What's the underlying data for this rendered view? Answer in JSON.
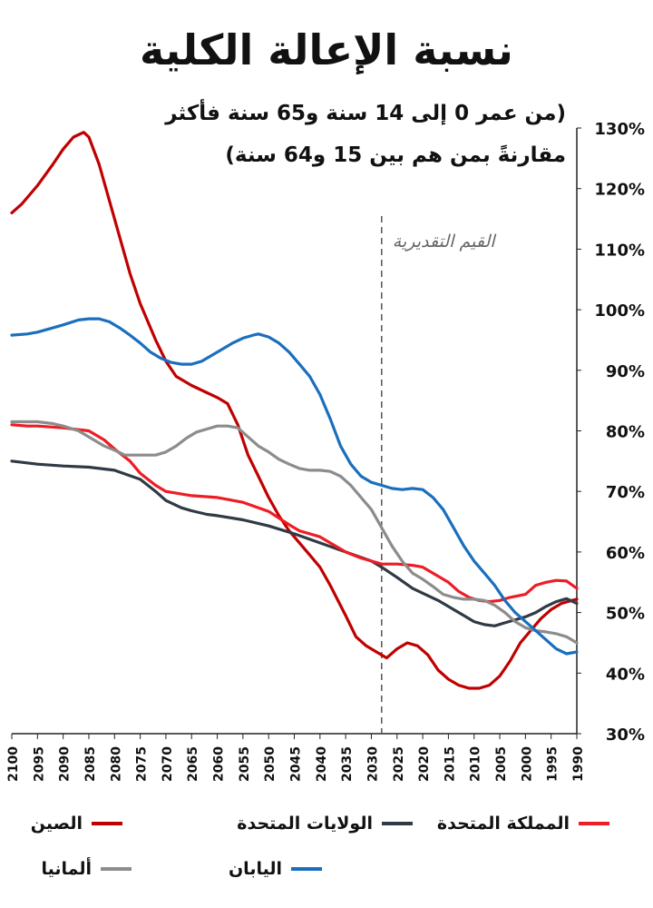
{
  "header": {
    "title": "نسبة الإعالة الكلية",
    "subtitle_line1": "(من عمر 0 إلى 14 سنة و65 سنة فأكثر",
    "subtitle_line2": "مقارنةً بمن هم بين 15 و64 سنة)"
  },
  "chart_data": {
    "type": "line",
    "title": "نسبة الإعالة الكلية",
    "subtitle": "(من عمر 0 إلى 14 سنة و65 سنة فأكثر مقارنةً بمن هم بين 15 و64 سنة)",
    "x_reversed": true,
    "xlim": [
      1990,
      2100
    ],
    "ylim": [
      30,
      130
    ],
    "x_ticks": [
      2100,
      2095,
      2090,
      2085,
      2080,
      2075,
      2070,
      2065,
      2060,
      2055,
      2050,
      2045,
      2040,
      2035,
      2030,
      2025,
      2020,
      2015,
      2010,
      2005,
      2000,
      1995,
      1990
    ],
    "y_ticks": [
      30,
      40,
      50,
      60,
      70,
      80,
      90,
      100,
      110,
      120,
      130
    ],
    "y_tick_labels": [
      "30%",
      "40%",
      "50%",
      "60%",
      "70%",
      "80%",
      "90%",
      "100%",
      "110%",
      "120%",
      "130%"
    ],
    "y_axis_side": "right",
    "grid": false,
    "annotation": {
      "text": "القيم التقديرية",
      "x": 2028
    },
    "legend_position": "bottom",
    "series": [
      {
        "name": "الصين",
        "color": "#c00000",
        "points": [
          [
            2100,
            116
          ],
          [
            2098,
            117.5
          ],
          [
            2095,
            120.5
          ],
          [
            2092,
            124
          ],
          [
            2090,
            126.5
          ],
          [
            2088,
            128.5
          ],
          [
            2086,
            129.3
          ],
          [
            2085,
            128.5
          ],
          [
            2083,
            124
          ],
          [
            2080,
            115
          ],
          [
            2077,
            106
          ],
          [
            2075,
            101
          ],
          [
            2072,
            95
          ],
          [
            2070,
            91.5
          ],
          [
            2068,
            89
          ],
          [
            2065,
            87.5
          ],
          [
            2062,
            86.3
          ],
          [
            2060,
            85.5
          ],
          [
            2058,
            84.5
          ],
          [
            2056,
            81
          ],
          [
            2054,
            76
          ],
          [
            2052,
            72.5
          ],
          [
            2050,
            69
          ],
          [
            2048,
            66
          ],
          [
            2046,
            63.5
          ],
          [
            2044,
            61.5
          ],
          [
            2042,
            59.5
          ],
          [
            2040,
            57.5
          ],
          [
            2038,
            54.5
          ],
          [
            2035,
            49.5
          ],
          [
            2033,
            46
          ],
          [
            2031,
            44.5
          ],
          [
            2029,
            43.5
          ],
          [
            2027,
            42.5
          ],
          [
            2025,
            44
          ],
          [
            2023,
            45
          ],
          [
            2021,
            44.5
          ],
          [
            2019,
            43
          ],
          [
            2017,
            40.5
          ],
          [
            2015,
            39
          ],
          [
            2013,
            38
          ],
          [
            2011,
            37.5
          ],
          [
            2009,
            37.5
          ],
          [
            2007,
            38
          ],
          [
            2005,
            39.5
          ],
          [
            2003,
            42
          ],
          [
            2001,
            45
          ],
          [
            1999,
            47
          ],
          [
            1997,
            49
          ],
          [
            1995,
            50.5
          ],
          [
            1993,
            51.5
          ],
          [
            1991,
            52
          ],
          [
            1990,
            52.2
          ]
        ]
      },
      {
        "name": "الولايات المتحدة",
        "color": "#2f3a45",
        "points": [
          [
            2100,
            75
          ],
          [
            2095,
            74.5
          ],
          [
            2090,
            74.2
          ],
          [
            2085,
            74
          ],
          [
            2080,
            73.5
          ],
          [
            2075,
            72
          ],
          [
            2072,
            70
          ],
          [
            2070,
            68.5
          ],
          [
            2067,
            67.3
          ],
          [
            2065,
            66.8
          ],
          [
            2062,
            66.2
          ],
          [
            2060,
            66
          ],
          [
            2055,
            65.3
          ],
          [
            2050,
            64.3
          ],
          [
            2045,
            63
          ],
          [
            2040,
            61.5
          ],
          [
            2035,
            60
          ],
          [
            2030,
            58.5
          ],
          [
            2028,
            57.5
          ],
          [
            2025,
            55.8
          ],
          [
            2022,
            54
          ],
          [
            2020,
            53.2
          ],
          [
            2017,
            52
          ],
          [
            2015,
            51
          ],
          [
            2012,
            49.5
          ],
          [
            2010,
            48.5
          ],
          [
            2008,
            48
          ],
          [
            2006,
            47.8
          ],
          [
            2004,
            48.3
          ],
          [
            2002,
            48.8
          ],
          [
            2000,
            49.3
          ],
          [
            1998,
            50
          ],
          [
            1996,
            51
          ],
          [
            1994,
            51.8
          ],
          [
            1992,
            52.3
          ],
          [
            1990,
            51.5
          ]
        ]
      },
      {
        "name": "المملكة المتحدة",
        "color": "#ee1c25",
        "points": [
          [
            2100,
            81
          ],
          [
            2097,
            80.8
          ],
          [
            2095,
            80.8
          ],
          [
            2090,
            80.5
          ],
          [
            2085,
            80
          ],
          [
            2082,
            78.5
          ],
          [
            2080,
            77
          ],
          [
            2077,
            75
          ],
          [
            2075,
            73
          ],
          [
            2072,
            71
          ],
          [
            2070,
            70
          ],
          [
            2065,
            69.3
          ],
          [
            2060,
            69
          ],
          [
            2055,
            68.2
          ],
          [
            2050,
            66.7
          ],
          [
            2046,
            64.5
          ],
          [
            2044,
            63.5
          ],
          [
            2042,
            63
          ],
          [
            2040,
            62.5
          ],
          [
            2038,
            61.5
          ],
          [
            2035,
            60
          ],
          [
            2032,
            59
          ],
          [
            2030,
            58.5
          ],
          [
            2028,
            58
          ],
          [
            2025,
            58
          ],
          [
            2022,
            57.8
          ],
          [
            2020,
            57.5
          ],
          [
            2018,
            56.5
          ],
          [
            2015,
            55
          ],
          [
            2013,
            53.5
          ],
          [
            2011,
            52.5
          ],
          [
            2009,
            52
          ],
          [
            2007,
            51.8
          ],
          [
            2005,
            52
          ],
          [
            2003,
            52.5
          ],
          [
            2000,
            53
          ],
          [
            1998,
            54.5
          ],
          [
            1996,
            55
          ],
          [
            1994,
            55.3
          ],
          [
            1992,
            55.2
          ],
          [
            1990,
            54
          ]
        ]
      },
      {
        "name": "ألمانيا",
        "color": "#8c8c8c",
        "points": [
          [
            2100,
            81.5
          ],
          [
            2097,
            81.5
          ],
          [
            2095,
            81.5
          ],
          [
            2092,
            81.2
          ],
          [
            2090,
            80.8
          ],
          [
            2087,
            80
          ],
          [
            2085,
            79
          ],
          [
            2082,
            77.5
          ],
          [
            2080,
            76.8
          ],
          [
            2078,
            76
          ],
          [
            2075,
            76
          ],
          [
            2072,
            76
          ],
          [
            2070,
            76.5
          ],
          [
            2068,
            77.5
          ],
          [
            2066,
            78.8
          ],
          [
            2064,
            79.8
          ],
          [
            2062,
            80.3
          ],
          [
            2060,
            80.8
          ],
          [
            2058,
            80.8
          ],
          [
            2056,
            80.5
          ],
          [
            2054,
            79
          ],
          [
            2052,
            77.5
          ],
          [
            2050,
            76.5
          ],
          [
            2048,
            75.3
          ],
          [
            2046,
            74.5
          ],
          [
            2044,
            73.8
          ],
          [
            2042,
            73.5
          ],
          [
            2040,
            73.5
          ],
          [
            2038,
            73.3
          ],
          [
            2036,
            72.5
          ],
          [
            2034,
            71
          ],
          [
            2032,
            69
          ],
          [
            2030,
            67
          ],
          [
            2028,
            64
          ],
          [
            2026,
            61
          ],
          [
            2024,
            58.5
          ],
          [
            2022,
            56.5
          ],
          [
            2020,
            55.5
          ],
          [
            2018,
            54.3
          ],
          [
            2016,
            53
          ],
          [
            2014,
            52.5
          ],
          [
            2012,
            52.2
          ],
          [
            2010,
            52.2
          ],
          [
            2008,
            52
          ],
          [
            2006,
            51.2
          ],
          [
            2004,
            50
          ],
          [
            2002,
            48.5
          ],
          [
            2000,
            47.5
          ],
          [
            1998,
            47
          ],
          [
            1996,
            46.8
          ],
          [
            1994,
            46.5
          ],
          [
            1992,
            46
          ],
          [
            1990,
            45
          ]
        ]
      },
      {
        "name": "اليابان",
        "color": "#1a6fbd",
        "points": [
          [
            2100,
            95.8
          ],
          [
            2097,
            96
          ],
          [
            2095,
            96.3
          ],
          [
            2092,
            97
          ],
          [
            2090,
            97.5
          ],
          [
            2087,
            98.3
          ],
          [
            2085,
            98.5
          ],
          [
            2083,
            98.5
          ],
          [
            2081,
            98
          ],
          [
            2079,
            97
          ],
          [
            2077,
            95.8
          ],
          [
            2075,
            94.5
          ],
          [
            2073,
            93
          ],
          [
            2071,
            92
          ],
          [
            2069,
            91.3
          ],
          [
            2067,
            91
          ],
          [
            2065,
            91
          ],
          [
            2063,
            91.5
          ],
          [
            2061,
            92.5
          ],
          [
            2059,
            93.5
          ],
          [
            2057,
            94.5
          ],
          [
            2055,
            95.3
          ],
          [
            2053,
            95.8
          ],
          [
            2052,
            96
          ],
          [
            2050,
            95.5
          ],
          [
            2048,
            94.5
          ],
          [
            2046,
            93
          ],
          [
            2044,
            91
          ],
          [
            2042,
            89
          ],
          [
            2040,
            86
          ],
          [
            2038,
            82
          ],
          [
            2036,
            77.5
          ],
          [
            2034,
            74.5
          ],
          [
            2032,
            72.5
          ],
          [
            2030,
            71.5
          ],
          [
            2028,
            71
          ],
          [
            2026,
            70.5
          ],
          [
            2024,
            70.3
          ],
          [
            2022,
            70.5
          ],
          [
            2020,
            70.3
          ],
          [
            2018,
            69
          ],
          [
            2016,
            67
          ],
          [
            2014,
            64
          ],
          [
            2012,
            61
          ],
          [
            2010,
            58.5
          ],
          [
            2008,
            56.5
          ],
          [
            2006,
            54.5
          ],
          [
            2004,
            52
          ],
          [
            2002,
            50
          ],
          [
            2000,
            48.5
          ],
          [
            1998,
            47
          ],
          [
            1996,
            45.5
          ],
          [
            1994,
            44
          ],
          [
            1992,
            43.2
          ],
          [
            1990,
            43.5
          ]
        ]
      }
    ]
  }
}
